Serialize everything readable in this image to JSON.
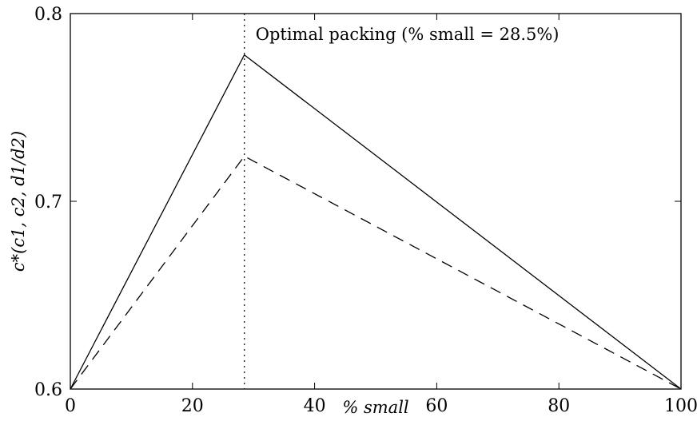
{
  "chart_data": {
    "type": "line",
    "title": "",
    "xlabel": "% small",
    "ylabel": "c*(c1, c2, d1/d2)",
    "xlim": [
      0,
      100
    ],
    "ylim": [
      0.6,
      0.8
    ],
    "xticks": [
      0,
      20,
      40,
      60,
      80,
      100
    ],
    "xtick_labels": [
      "0",
      "20",
      "40",
      "60",
      "80",
      "100"
    ],
    "yticks": [
      0.6,
      0.7,
      0.8
    ],
    "ytick_labels": [
      "0.6",
      "0.7",
      "0.8"
    ],
    "grid": false,
    "legend": null,
    "series": [
      {
        "style": "solid",
        "color": "#000000",
        "x": [
          0,
          28.5,
          100
        ],
        "y": [
          0.6,
          0.778,
          0.6
        ]
      },
      {
        "style": "dashed",
        "color": "#000000",
        "x": [
          0,
          28.5,
          100
        ],
        "y": [
          0.6,
          0.724,
          0.6
        ]
      }
    ],
    "vline": {
      "x": 28.5,
      "style": "dotted"
    },
    "annotation": {
      "text": "Optimal packing (% small = 28.5%)",
      "x": 28.5,
      "y": 0.8
    }
  }
}
